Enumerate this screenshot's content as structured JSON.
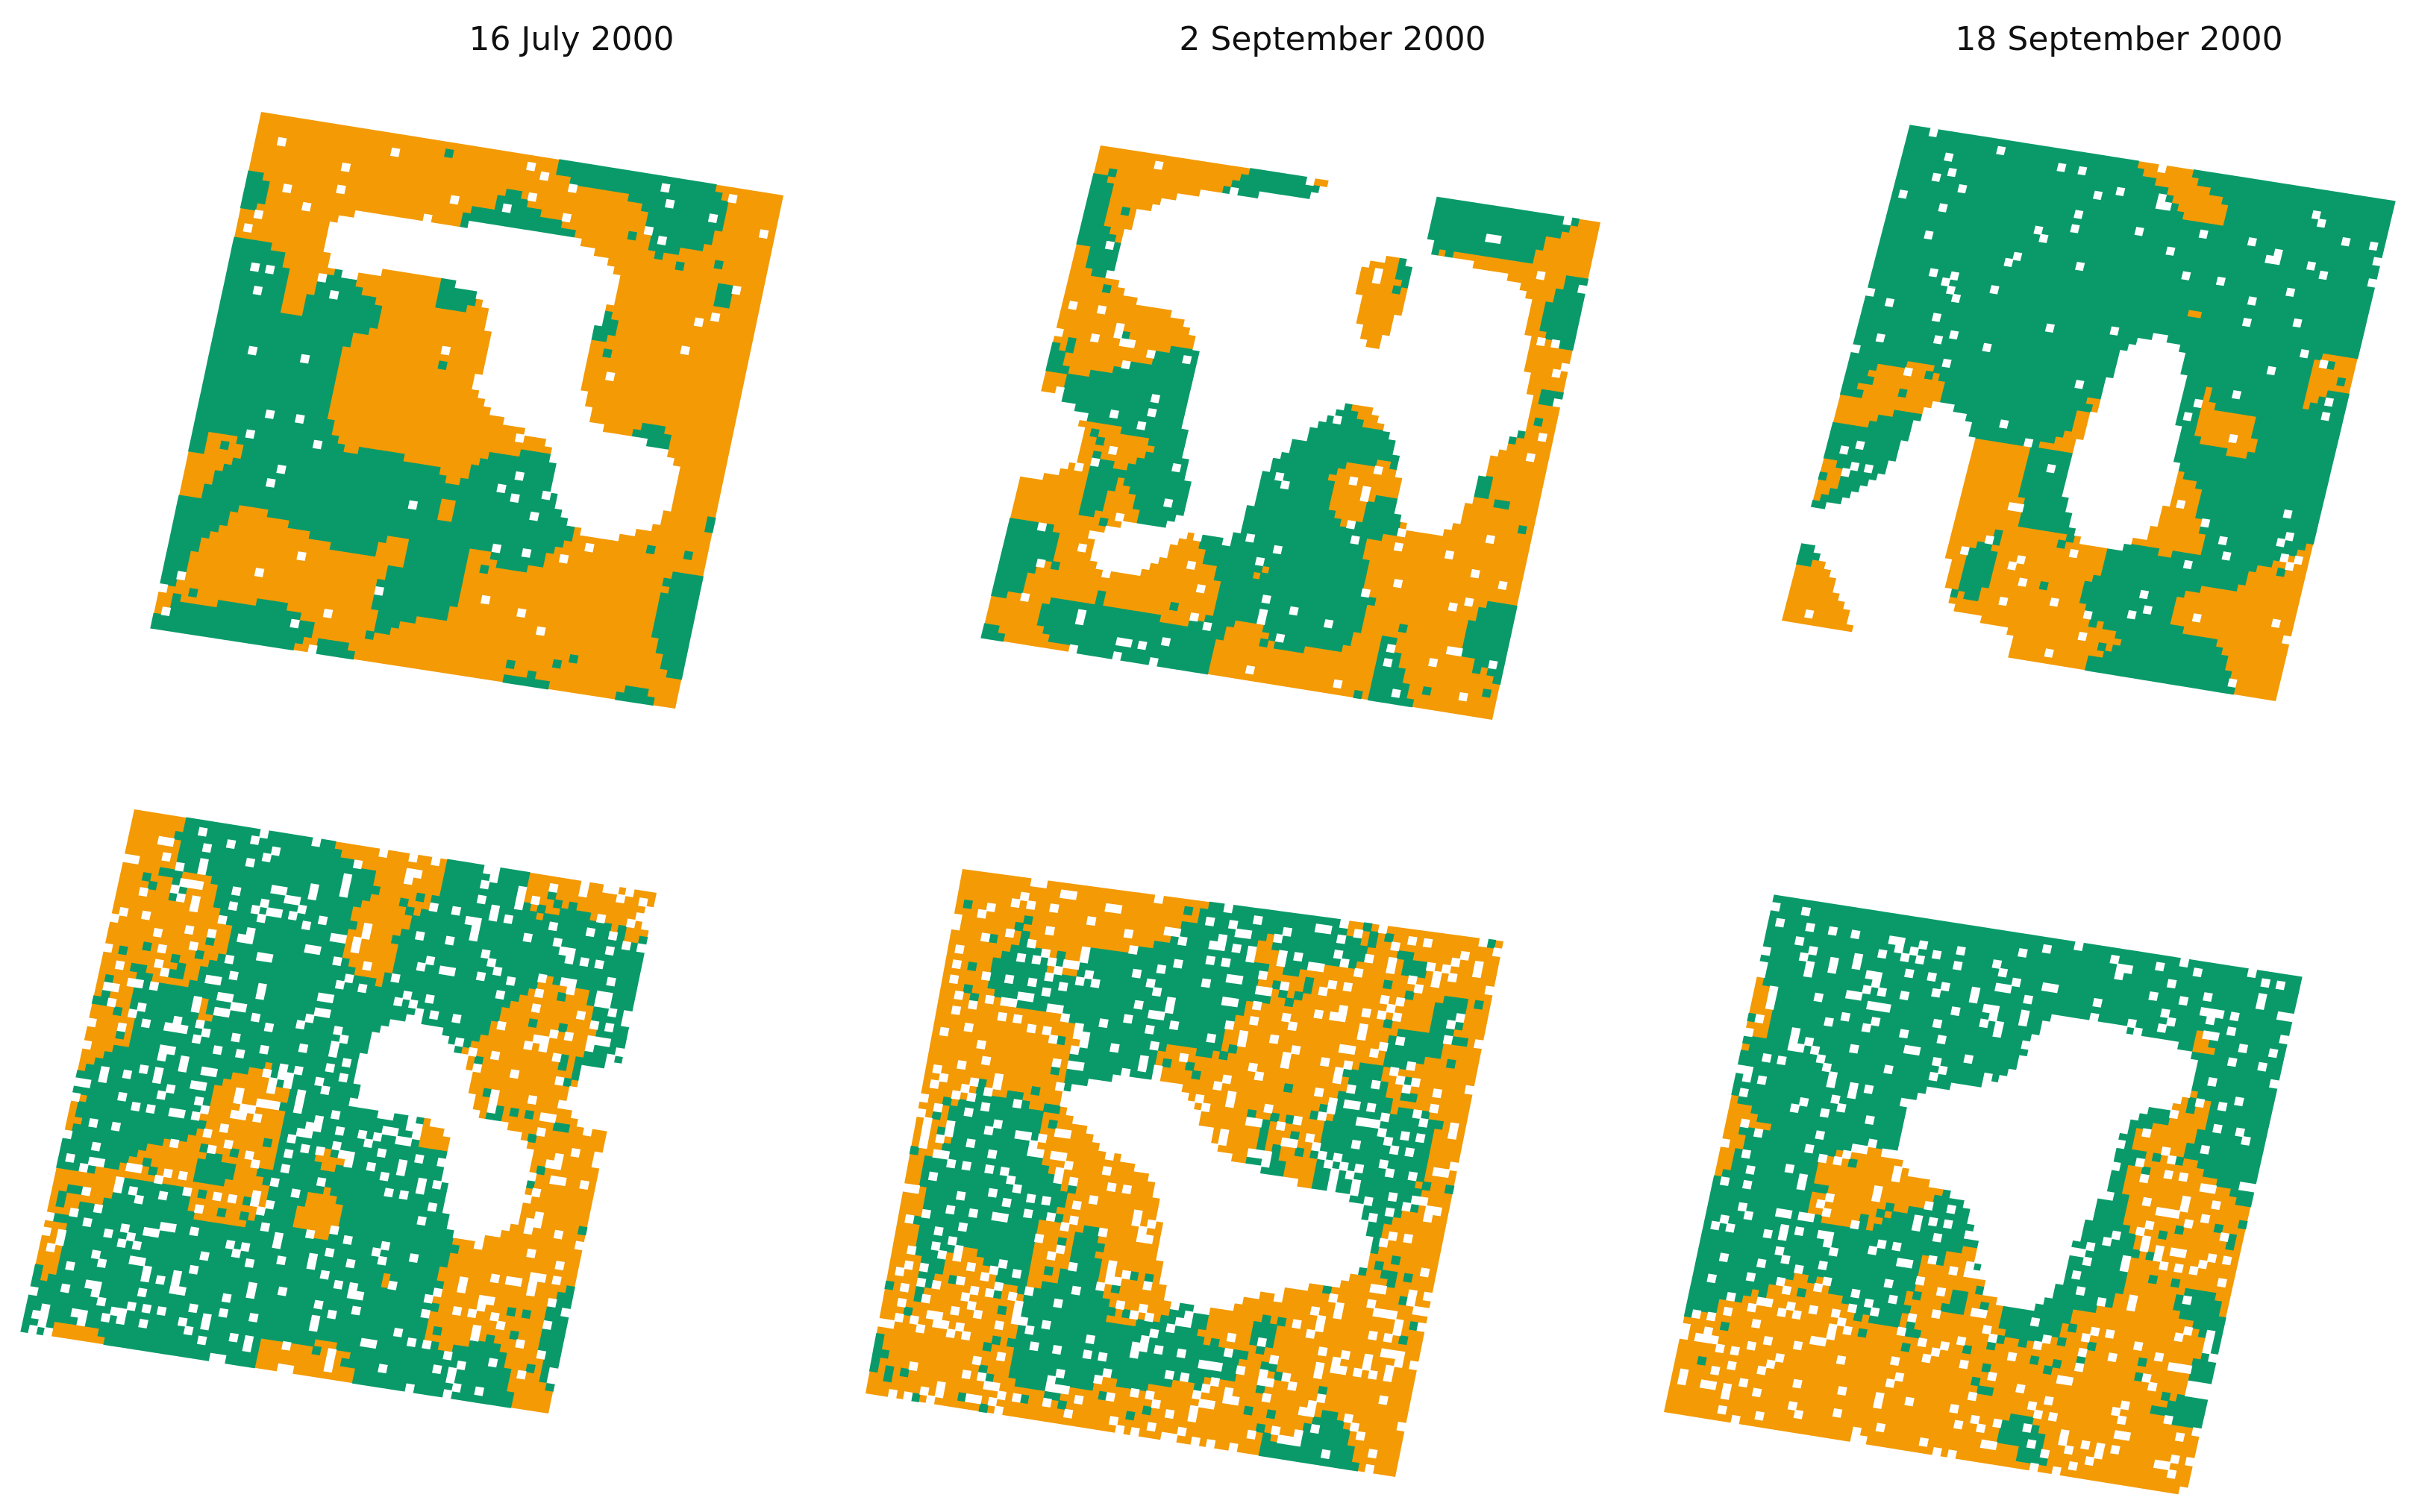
{
  "figure": {
    "columns": [
      {
        "date": "16 July 2000"
      },
      {
        "date": "2 September 2000"
      },
      {
        "date": "18 September 2000"
      }
    ],
    "rows": 2,
    "colors": {
      "green": "#0a9a6a",
      "orange": "#f39a05",
      "background": "#ffffff"
    }
  }
}
